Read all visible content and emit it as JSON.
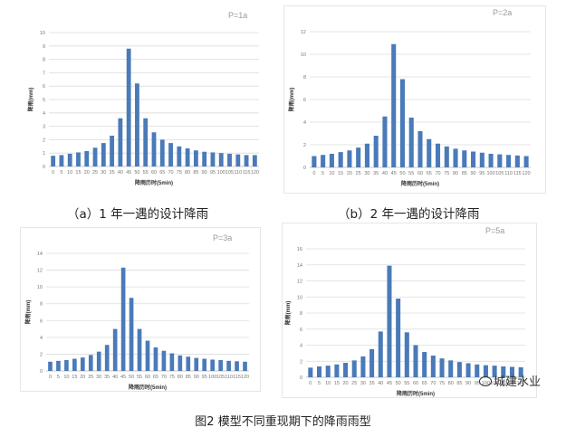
{
  "figure_title": "图2 模型不同重现期下的降雨雨型",
  "watermark": "城建水业",
  "watermark_icon": "wechat-icon",
  "colors": {
    "bar": "#4a7ab8",
    "grid": "#dcdcdc",
    "axis_text": "#777777"
  },
  "chart_data": [
    {
      "type": "bar",
      "id": "a",
      "caption": "（a）1 年一遇的设计降雨",
      "period_label": "P=1a",
      "ylabel": "降雨(mm)",
      "xlabel": "降雨历时(5min)",
      "ylim": [
        0,
        10
      ],
      "yticks": [
        0,
        1,
        2,
        3,
        4,
        5,
        6,
        7,
        8,
        9,
        10
      ],
      "categories": [
        "0",
        "5",
        "10",
        "15",
        "20",
        "25",
        "30",
        "35",
        "40",
        "45",
        "50",
        "55",
        "60",
        "65",
        "70",
        "75",
        "80",
        "85",
        "90",
        "95",
        "100",
        "105",
        "110",
        "115",
        "120"
      ],
      "values": [
        0.8,
        0.85,
        0.95,
        1.05,
        1.15,
        1.4,
        1.75,
        2.3,
        3.6,
        8.8,
        6.2,
        3.6,
        2.55,
        2.0,
        1.75,
        1.5,
        1.35,
        1.2,
        1.1,
        1.05,
        1.0,
        0.95,
        0.9,
        0.85,
        0.85
      ],
      "grid": true
    },
    {
      "type": "bar",
      "id": "b",
      "caption": "（b）2 年一遇的设计降雨",
      "period_label": "P=2a",
      "ylabel": "降雨(mm)",
      "xlabel": "降雨历时(5min)",
      "ylim": [
        0,
        12
      ],
      "yticks": [
        0,
        2,
        4,
        6,
        8,
        10,
        12
      ],
      "categories": [
        "0",
        "5",
        "10",
        "15",
        "20",
        "25",
        "30",
        "35",
        "40",
        "45",
        "50",
        "55",
        "60",
        "65",
        "70",
        "75",
        "80",
        "85",
        "90",
        "95",
        "100",
        "105",
        "110",
        "115",
        "120"
      ],
      "values": [
        1.0,
        1.1,
        1.2,
        1.35,
        1.5,
        1.75,
        2.1,
        2.8,
        4.5,
        10.9,
        7.8,
        4.4,
        3.2,
        2.5,
        2.1,
        1.85,
        1.65,
        1.5,
        1.4,
        1.3,
        1.2,
        1.15,
        1.1,
        1.05,
        1.0
      ],
      "grid": true
    },
    {
      "type": "bar",
      "id": "c",
      "caption": "",
      "period_label": "P=3a",
      "ylabel": "降雨(mm)",
      "xlabel": "降雨历时(5min)",
      "ylim": [
        0,
        14
      ],
      "yticks": [
        0,
        2,
        4,
        6,
        8,
        10,
        12,
        14
      ],
      "categories": [
        "0",
        "5",
        "10",
        "15",
        "20",
        "25",
        "30",
        "35",
        "40",
        "45",
        "50",
        "55",
        "60",
        "65",
        "70",
        "75",
        "80",
        "85",
        "90",
        "95",
        "100",
        "105",
        "110",
        "115",
        "120"
      ],
      "values": [
        1.1,
        1.2,
        1.3,
        1.45,
        1.6,
        1.9,
        2.3,
        3.1,
        5.0,
        12.3,
        8.7,
        5.0,
        3.6,
        2.8,
        2.4,
        2.1,
        1.85,
        1.7,
        1.55,
        1.45,
        1.35,
        1.3,
        1.2,
        1.15,
        1.1
      ],
      "grid": true
    },
    {
      "type": "bar",
      "id": "d",
      "caption": "",
      "period_label": "P=5a",
      "ylabel": "降雨(mm)",
      "xlabel": "降雨历时(5min)",
      "ylim": [
        0,
        16
      ],
      "yticks": [
        0,
        2,
        4,
        6,
        8,
        10,
        12,
        14,
        16
      ],
      "categories": [
        "0",
        "5",
        "10",
        "15",
        "20",
        "25",
        "30",
        "35",
        "40",
        "45",
        "50",
        "55",
        "60",
        "65",
        "70",
        "75",
        "80",
        "85",
        "90",
        "95",
        "100",
        "105",
        "110",
        "115",
        "120"
      ],
      "values": [
        1.2,
        1.35,
        1.45,
        1.6,
        1.8,
        2.1,
        2.6,
        3.5,
        5.7,
        13.9,
        9.8,
        5.6,
        4.0,
        3.15,
        2.7,
        2.35,
        2.1,
        1.9,
        1.75,
        1.6,
        1.5,
        1.45,
        1.35,
        1.3,
        1.25
      ],
      "grid": true
    }
  ]
}
